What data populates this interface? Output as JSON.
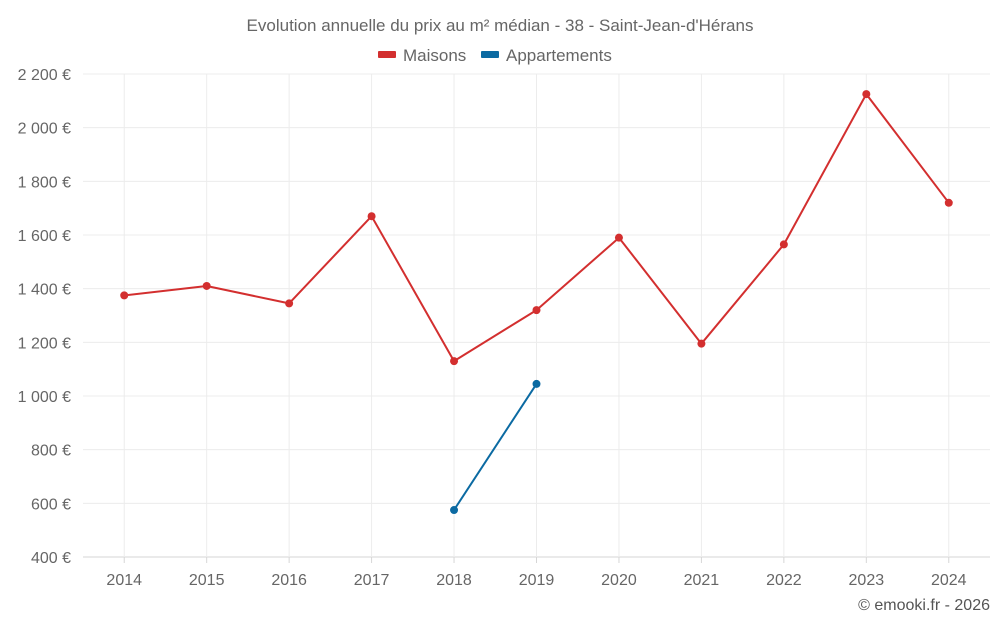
{
  "chart_data": {
    "type": "line",
    "title": "Evolution annuelle du prix au m² médian - 38 - Saint-Jean-d'Hérans",
    "x": [
      "2014",
      "2015",
      "2016",
      "2017",
      "2018",
      "2019",
      "2020",
      "2021",
      "2022",
      "2023",
      "2024"
    ],
    "series": [
      {
        "name": "Maisons",
        "color": "#d32f2f",
        "values": [
          1375,
          1410,
          1345,
          1670,
          1130,
          1320,
          1590,
          1195,
          1565,
          2125,
          1720
        ]
      },
      {
        "name": "Appartements",
        "color": "#0b6aa2",
        "values": [
          null,
          null,
          null,
          null,
          575,
          1045,
          null,
          null,
          null,
          null,
          null
        ]
      }
    ],
    "ylim": [
      400,
      2200
    ],
    "yticks": [
      400,
      600,
      800,
      1000,
      1200,
      1400,
      1600,
      1800,
      2000,
      2200
    ],
    "ytick_labels": [
      "400 €",
      "600 €",
      "800 €",
      "1 000 €",
      "1 200 €",
      "1 400 €",
      "1 600 €",
      "1 800 €",
      "2 000 €",
      "2 200 €"
    ],
    "xlabel": "",
    "ylabel": "",
    "grid": true,
    "legend": "top-center"
  },
  "credit": "© emooki.fr - 2026"
}
